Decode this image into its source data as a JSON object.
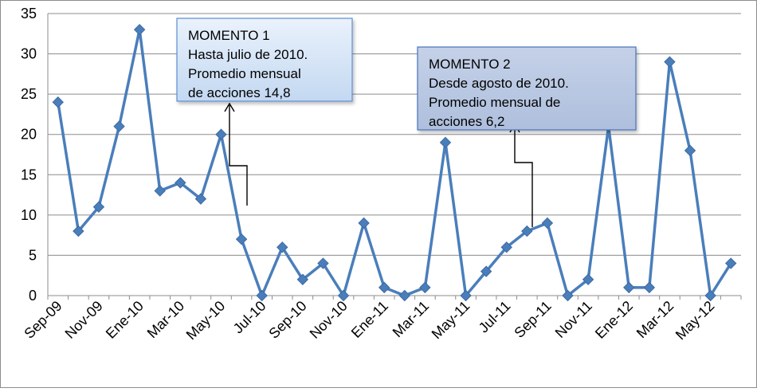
{
  "chart_data": {
    "type": "line",
    "title": "",
    "xlabel": "",
    "ylabel": "",
    "ylim": [
      0,
      35
    ],
    "yticks": [
      0,
      5,
      10,
      15,
      20,
      25,
      30,
      35
    ],
    "grid": true,
    "legend": "none",
    "x": [
      "Sep-09",
      "Oct-09",
      "Nov-09",
      "Dic-09",
      "Ene-10",
      "Feb-10",
      "Mar-10",
      "Abr-10",
      "May-10",
      "Jun-10",
      "Jul-10",
      "Ago-10",
      "Sep-10",
      "Oct-10",
      "Nov-10",
      "Dic-10",
      "Ene-11",
      "Feb-11",
      "Mar-11",
      "Abr-11",
      "May-11",
      "Jun-11",
      "Jul-11",
      "Ago-11",
      "Sep-11",
      "Oct-11",
      "Nov-11",
      "Dic-11",
      "Ene-12",
      "Feb-12",
      "Mar-12",
      "Abr-12",
      "May-12",
      "Jun-12"
    ],
    "x_tick_labels": [
      "Sep-09",
      "Nov-09",
      "Ene-10",
      "Mar-10",
      "May-10",
      "Jul-10",
      "Sep-10",
      "Nov-10",
      "Ene-11",
      "Mar-11",
      "May-11",
      "Jul-11",
      "Sep-11",
      "Nov-11",
      "Ene-12",
      "Mar-12",
      "May-12"
    ],
    "series": [
      {
        "color": "#4a7ebb",
        "marker": "diamond",
        "values": [
          24,
          8,
          11,
          21,
          33,
          13,
          14,
          12,
          20,
          7,
          0,
          6,
          2,
          4,
          0,
          9,
          1,
          0,
          1,
          19,
          0,
          3,
          6,
          8,
          9,
          0,
          2,
          21,
          1,
          1,
          29,
          18,
          0,
          4
        ]
      }
    ],
    "annotations": [
      {
        "lines": [
          "MOMENTO 1",
          "Hasta julio de 2010.",
          "Promedio mensual",
          "de acciones 14,8"
        ],
        "fill": "#cfe0f5"
      },
      {
        "lines": [
          "MOMENTO 2",
          "Desde agosto de 2010.",
          "Promedio mensual de",
          "acciones 6,2"
        ],
        "fill": "#b8c6e0"
      }
    ]
  }
}
